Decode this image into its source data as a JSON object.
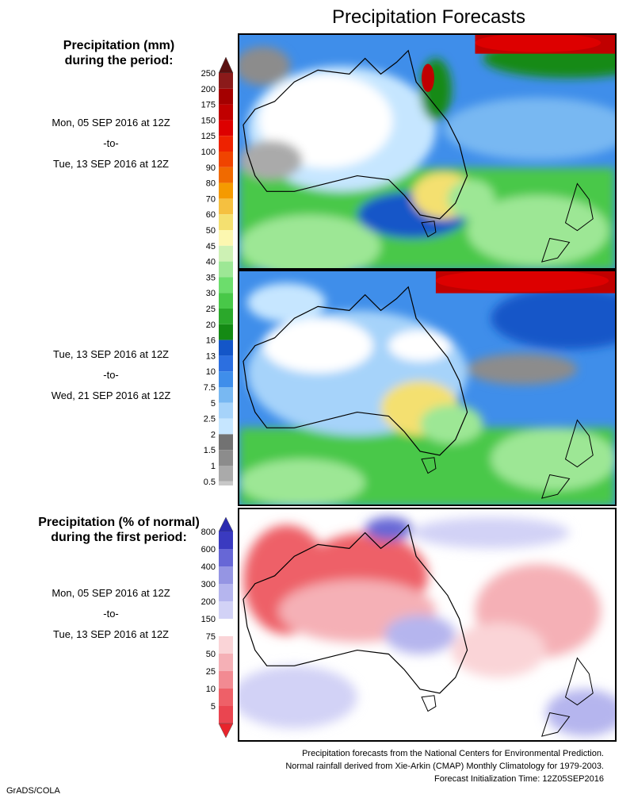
{
  "title": "Precipitation Forecasts",
  "precip_section": {
    "heading_lines": [
      "Precipitation (mm)",
      "during the period:"
    ],
    "period1": [
      "Mon, 05 SEP 2016 at 12Z",
      "-to-",
      "Tue, 13 SEP 2016 at 12Z"
    ],
    "period2": [
      "Tue, 13 SEP 2016 at 12Z",
      "-to-",
      "Wed, 21 SEP 2016 at 12Z"
    ]
  },
  "anomaly_section": {
    "heading_lines": [
      "Precipitation (% of normal)",
      "during the first period:"
    ],
    "period": [
      "Mon, 05 SEP 2016 at 12Z",
      "-to-",
      "Tue, 13 SEP 2016 at 12Z"
    ]
  },
  "precip_colorbar": {
    "levels": [
      "250",
      "200",
      "175",
      "150",
      "125",
      "100",
      "90",
      "80",
      "70",
      "60",
      "50",
      "45",
      "40",
      "35",
      "30",
      "25",
      "20",
      "16",
      "13",
      "10",
      "7.5",
      "5",
      "2.5",
      "2",
      "1.5",
      "1",
      "0.5"
    ],
    "colors": [
      "#8b1a1a",
      "#a40000",
      "#c00000",
      "#dd0000",
      "#ee2200",
      "#f04400",
      "#f06a00",
      "#f59a00",
      "#f5c040",
      "#f4e070",
      "#fcf7b0",
      "#cdf1b4",
      "#9de795",
      "#6cdd6c",
      "#48c848",
      "#2ba82b",
      "#148a14",
      "#1456c8",
      "#2c6fe0",
      "#3f8eea",
      "#78b8f2",
      "#a6d3fa",
      "#c6e6ff",
      "#727272",
      "#8c8c8c",
      "#aaaaaa",
      "#c8c8c8"
    ],
    "top_triangle": "#5a1010",
    "bottom_triangle": "#ffffff"
  },
  "anomaly_colorbar": {
    "levels": [
      "800",
      "600",
      "400",
      "300",
      "200",
      "150",
      "75",
      "50",
      "25",
      "10",
      "5"
    ],
    "colors": [
      "#3a3ac0",
      "#6767d6",
      "#9595e3",
      "#b5b5ee",
      "#d2d2f6",
      "#ffffff",
      "#fad4d7",
      "#f5b0b6",
      "#f28a92",
      "#ee6068",
      "#ea4550"
    ],
    "top_triangle": "#2a2ab0",
    "bottom_triangle": "#e8242c"
  },
  "footer_lines": [
    "Precipitation forecasts from the National Centers for Environmental Prediction.",
    "Normal rainfall derived from Xie-Arkin (CMAP) Monthly Climatology for 1979-2003.",
    "Forecast Initialization Time: 12Z05SEP2016"
  ],
  "credit": "GrADS/COLA"
}
